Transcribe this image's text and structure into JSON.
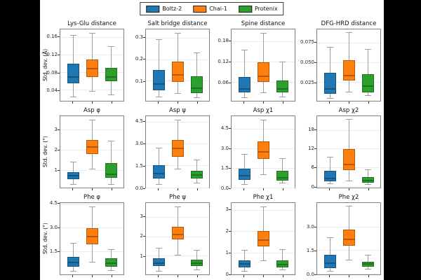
{
  "figure": {
    "background": "#000000",
    "panel_background": "#ffffff"
  },
  "legend": {
    "items": [
      {
        "label": "Boltz-2",
        "color": "#1f77b4"
      },
      {
        "label": "Chai-1",
        "color": "#ff7f0e"
      },
      {
        "label": "Protenix",
        "color": "#2ca02c"
      }
    ]
  },
  "chart_data": {
    "type": "boxplot-grid",
    "rows": 3,
    "cols": 4,
    "series_names": [
      "Boltz-2",
      "Chai-1",
      "Protenix"
    ],
    "style": {
      "fill_colors": [
        "#1f77b4",
        "#ff7f0e",
        "#2ca02c"
      ],
      "edge_colors": [
        "#16537e",
        "#b2590a",
        "#1f701f"
      ],
      "whisker_color": "#9e9e9e",
      "grid_color": "#ebebeb",
      "spine_color": "#7f7f7f",
      "grid": true,
      "legend_position": "top-center"
    },
    "ylabels_by_row": [
      "Std. dev. (Å)",
      "Std. dev. (°)",
      "Std. dev. (°)"
    ],
    "subplots": [
      {
        "slug": "lys-glu-distance",
        "title": "Lys-Glu distance",
        "ylim": [
          0.015,
          0.178
        ],
        "yticks": [
          0.04,
          0.08,
          0.12,
          0.16
        ],
        "ytick_labels": [
          "0.04",
          "0.08",
          "0.12",
          "0.16"
        ],
        "boxes": [
          {
            "series": "Boltz-2",
            "whislo": 0.025,
            "q1": 0.055,
            "med": 0.07,
            "q3": 0.1,
            "whishi": 0.165
          },
          {
            "series": "Chai-1",
            "whislo": 0.038,
            "q1": 0.07,
            "med": 0.088,
            "q3": 0.11,
            "whishi": 0.17
          },
          {
            "series": "Protenix",
            "whislo": 0.03,
            "q1": 0.06,
            "med": 0.07,
            "q3": 0.09,
            "whishi": 0.14
          }
        ]
      },
      {
        "slug": "salt-bridge-distance",
        "title": "Salt bridge distance",
        "ylim": [
          0.005,
          0.34
        ],
        "yticks": [
          0.1,
          0.2,
          0.3
        ],
        "ytick_labels": [
          "0.1",
          "0.2",
          "0.3"
        ],
        "boxes": [
          {
            "series": "Boltz-2",
            "whislo": 0.025,
            "q1": 0.055,
            "med": 0.085,
            "q3": 0.15,
            "whishi": 0.295
          },
          {
            "series": "Chai-1",
            "whislo": 0.04,
            "q1": 0.095,
            "med": 0.125,
            "q3": 0.19,
            "whishi": 0.325
          },
          {
            "series": "Protenix",
            "whislo": 0.02,
            "q1": 0.04,
            "med": 0.065,
            "q3": 0.12,
            "whishi": 0.23
          }
        ]
      },
      {
        "slug": "spine-distance",
        "title": "Spine distance",
        "ylim": [
          0.005,
          0.215
        ],
        "yticks": [
          0.06,
          0.12,
          0.18
        ],
        "ytick_labels": [
          "0.06",
          "0.12",
          "0.18"
        ],
        "boxes": [
          {
            "series": "Boltz-2",
            "whislo": 0.015,
            "q1": 0.03,
            "med": 0.04,
            "q3": 0.075,
            "whishi": 0.155
          },
          {
            "series": "Chai-1",
            "whislo": 0.03,
            "q1": 0.06,
            "med": 0.078,
            "q3": 0.118,
            "whishi": 0.205
          },
          {
            "series": "Protenix",
            "whislo": 0.018,
            "q1": 0.03,
            "med": 0.04,
            "q3": 0.065,
            "whishi": 0.12
          }
        ]
      },
      {
        "slug": "dfg-hrd-distance",
        "title": "DFG-HRD distance",
        "ylim": [
          0.001,
          0.092
        ],
        "yticks": [
          0.025,
          0.05,
          0.075
        ],
        "ytick_labels": [
          "0.025",
          "0.050",
          "0.075"
        ],
        "boxes": [
          {
            "series": "Boltz-2",
            "whislo": 0.005,
            "q1": 0.01,
            "med": 0.016,
            "q3": 0.037,
            "whishi": 0.07
          },
          {
            "series": "Chai-1",
            "whislo": 0.013,
            "q1": 0.027,
            "med": 0.033,
            "q3": 0.053,
            "whishi": 0.088
          },
          {
            "series": "Protenix",
            "whislo": 0.008,
            "q1": 0.012,
            "med": 0.02,
            "q3": 0.035,
            "whishi": 0.067
          }
        ]
      },
      {
        "slug": "asp-phi",
        "title": "Asp φ",
        "ylim": [
          0.12,
          3.68
        ],
        "yticks": [
          1,
          2,
          3
        ],
        "ytick_labels": [
          "1",
          "2",
          "3"
        ],
        "boxes": [
          {
            "series": "Boltz-2",
            "whislo": 0.3,
            "q1": 0.55,
            "med": 0.7,
            "q3": 0.9,
            "whishi": 1.4
          },
          {
            "series": "Chai-1",
            "whislo": 1.05,
            "q1": 1.8,
            "med": 2.15,
            "q3": 2.5,
            "whishi": 3.5
          },
          {
            "series": "Protenix",
            "whislo": 0.3,
            "q1": 0.6,
            "med": 0.78,
            "q3": 1.35,
            "whishi": 2.45
          }
        ]
      },
      {
        "slug": "asp-psi",
        "title": "Asp ψ",
        "ylim": [
          -0.02,
          4.88
        ],
        "yticks": [
          0.0,
          1.5,
          3.0,
          4.5
        ],
        "ytick_labels": [
          "0.0",
          "1.5",
          "3.0",
          "4.5"
        ],
        "boxes": [
          {
            "series": "Boltz-2",
            "whislo": 0.2,
            "q1": 0.6,
            "med": 0.95,
            "q3": 1.5,
            "whishi": 2.7
          },
          {
            "series": "Chai-1",
            "whislo": 1.3,
            "q1": 2.1,
            "med": 2.65,
            "q3": 3.25,
            "whishi": 4.65
          },
          {
            "series": "Protenix",
            "whislo": 0.3,
            "q1": 0.6,
            "med": 0.85,
            "q3": 1.15,
            "whishi": 1.9
          }
        ]
      },
      {
        "slug": "asp-chi1",
        "title": "Asp χ1",
        "ylim": [
          0.0,
          5.45
        ],
        "yticks": [
          0.0,
          1.5,
          3.0,
          4.5
        ],
        "ytick_labels": [
          "0.0",
          "1.5",
          "3.0",
          "4.5"
        ],
        "boxes": [
          {
            "series": "Boltz-2",
            "whislo": 0.25,
            "q1": 0.6,
            "med": 0.9,
            "q3": 1.45,
            "whishi": 2.55
          },
          {
            "series": "Chai-1",
            "whislo": 1.0,
            "q1": 2.2,
            "med": 2.7,
            "q3": 3.55,
            "whishi": 5.2
          },
          {
            "series": "Protenix",
            "whislo": 0.35,
            "q1": 0.55,
            "med": 0.75,
            "q3": 1.3,
            "whishi": 2.25
          }
        ]
      },
      {
        "slug": "asp-chi2",
        "title": "Asp χ2",
        "ylim": [
          -0.55,
          22.5
        ],
        "yticks": [
          0,
          6,
          12,
          18
        ],
        "ytick_labels": [
          "0",
          "6",
          "12",
          "18"
        ],
        "boxes": [
          {
            "series": "Boltz-2",
            "whislo": 0.8,
            "q1": 1.5,
            "med": 2.3,
            "q3": 4.8,
            "whishi": 9.3
          },
          {
            "series": "Chai-1",
            "whislo": 1.8,
            "q1": 5.0,
            "med": 6.8,
            "q3": 11.8,
            "whishi": 21.5
          },
          {
            "series": "Protenix",
            "whislo": 0.5,
            "q1": 1.0,
            "med": 1.8,
            "q3": 2.8,
            "whishi": 5.3
          }
        ]
      },
      {
        "slug": "phe-phi",
        "title": "Phe φ",
        "ylim": [
          0.05,
          4.55
        ],
        "yticks": [
          1.5,
          3.0,
          4.5
        ],
        "ytick_labels": [
          "1.5",
          "3.0",
          "4.5"
        ],
        "boxes": [
          {
            "series": "Boltz-2",
            "whislo": 0.25,
            "q1": 0.55,
            "med": 0.8,
            "q3": 1.15,
            "whishi": 2.05
          },
          {
            "series": "Chai-1",
            "whislo": 0.85,
            "q1": 1.95,
            "med": 2.45,
            "q3": 2.95,
            "whishi": 4.35
          },
          {
            "series": "Protenix",
            "whislo": 0.3,
            "q1": 0.55,
            "med": 0.75,
            "q3": 1.05,
            "whishi": 1.65
          }
        ]
      },
      {
        "slug": "phe-psi",
        "title": "Phe ψ",
        "ylim": [
          0.03,
          3.72
        ],
        "yticks": [
          1,
          2,
          3
        ],
        "ytick_labels": [
          "1",
          "2",
          "3"
        ],
        "boxes": [
          {
            "series": "Boltz-2",
            "whislo": 0.2,
            "q1": 0.45,
            "med": 0.6,
            "q3": 0.85,
            "whishi": 1.4
          },
          {
            "series": "Chai-1",
            "whislo": 1.05,
            "q1": 1.85,
            "med": 2.1,
            "q3": 2.5,
            "whishi": 3.55
          },
          {
            "series": "Protenix",
            "whislo": 0.3,
            "q1": 0.45,
            "med": 0.62,
            "q3": 0.8,
            "whishi": 1.3
          }
        ]
      },
      {
        "slug": "phe-chi1",
        "title": "Phe χ1",
        "ylim": [
          -0.02,
          3.32
        ],
        "yticks": [
          0,
          1,
          2,
          3
        ],
        "ytick_labels": [
          "0",
          "1",
          "2",
          "3"
        ],
        "boxes": [
          {
            "series": "Boltz-2",
            "whislo": 0.15,
            "q1": 0.3,
            "med": 0.48,
            "q3": 0.65,
            "whishi": 1.12
          },
          {
            "series": "Chai-1",
            "whislo": 0.65,
            "q1": 1.3,
            "med": 1.6,
            "q3": 2.02,
            "whishi": 3.15
          },
          {
            "series": "Protenix",
            "whislo": 0.2,
            "q1": 0.3,
            "med": 0.45,
            "q3": 0.65,
            "whishi": 1.15
          }
        ]
      },
      {
        "slug": "phe-chi2",
        "title": "Phe χ2",
        "ylim": [
          -0.06,
          4.55
        ],
        "yticks": [
          0.0,
          1.5,
          3.0
        ],
        "ytick_labels": [
          "0.0",
          "1.5",
          "3.0"
        ],
        "boxes": [
          {
            "series": "Boltz-2",
            "whislo": 0.15,
            "q1": 0.35,
            "med": 0.65,
            "q3": 1.2,
            "whishi": 2.35
          },
          {
            "series": "Chai-1",
            "whislo": 0.9,
            "q1": 1.8,
            "med": 2.2,
            "q3": 2.85,
            "whishi": 4.35
          },
          {
            "series": "Protenix",
            "whislo": 0.3,
            "q1": 0.45,
            "med": 0.6,
            "q3": 0.75,
            "whishi": 1.2
          }
        ]
      }
    ]
  }
}
